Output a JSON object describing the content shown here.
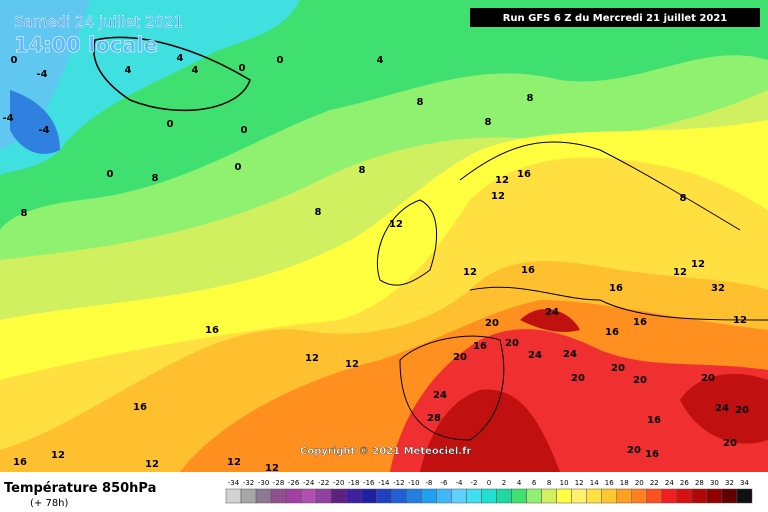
{
  "header": {
    "date": "Samedi 24 juillet 2021",
    "time": "14:00 locale",
    "run": "Run GFS 6 Z du Mercredi 21 juillet 2021",
    "copyright": "Copyright © 2021 Meteociel.fr"
  },
  "footer": {
    "title": "Température 850hPa",
    "lead": "(+ 78h)"
  },
  "scale": {
    "labels": [
      -34,
      -32,
      -30,
      -28,
      -26,
      -24,
      -22,
      -20,
      -18,
      -16,
      -14,
      -12,
      -10,
      -8,
      -6,
      -4,
      -2,
      0,
      2,
      4,
      6,
      8,
      10,
      12,
      14,
      16,
      18,
      20,
      22,
      24,
      26,
      28,
      30,
      32,
      34
    ],
    "colors": [
      "#d2d2d2",
      "#a8a8a8",
      "#8c7890",
      "#905090",
      "#a040a0",
      "#b050b0",
      "#9040a0",
      "#602080",
      "#4020a0",
      "#2020a0",
      "#2040c0",
      "#2060d0",
      "#2080e0",
      "#20a0f0",
      "#40b8f8",
      "#60d0ff",
      "#40e0f0",
      "#20e0d0",
      "#20d8a0",
      "#40e070",
      "#90f070",
      "#d0f060",
      "#ffff40",
      "#fff070",
      "#ffe040",
      "#ffc830",
      "#ffa020",
      "#ff8020",
      "#ff5020",
      "#f02020",
      "#d81010",
      "#b00808",
      "#900000",
      "#600000",
      "#101010"
    ]
  },
  "map_labels": [
    0,
    -4,
    -4,
    -4,
    4,
    4,
    4,
    0,
    0,
    4,
    8,
    8,
    8,
    0,
    0,
    0,
    0,
    8,
    8,
    8,
    8,
    12,
    12,
    16,
    12,
    12,
    16,
    8,
    12,
    12,
    16,
    20,
    24,
    20,
    20,
    16,
    24,
    24,
    24,
    28,
    20,
    20,
    20,
    20,
    16,
    12,
    12,
    16,
    12,
    12,
    12,
    12,
    32,
    12,
    20,
    24,
    20,
    20,
    16,
    16,
    16,
    16,
    16
  ]
}
